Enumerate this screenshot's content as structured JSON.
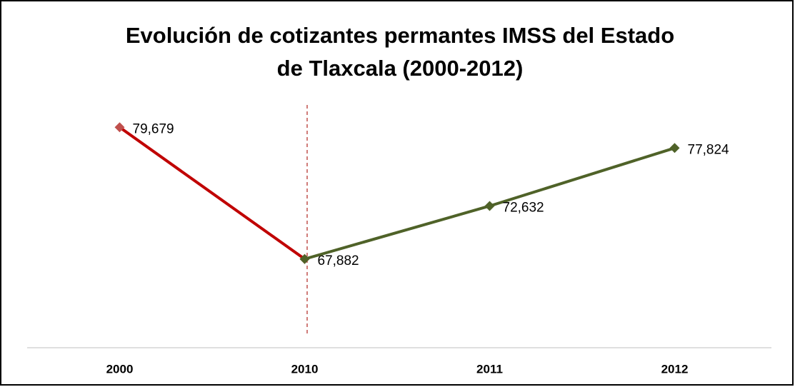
{
  "chart_data": {
    "type": "line",
    "title": [
      "Evolución de cotizantes permantes IMSS del Estado",
      "de Tlaxcala (2000-2012)"
    ],
    "categories": [
      "2000",
      "2010",
      "2011",
      "2012"
    ],
    "series": [
      {
        "color": "#c00000",
        "marker_color": "#c0504d",
        "values": [
          79679,
          67882,
          null,
          null
        ],
        "value_labels": [
          "79,679",
          "67,882",
          null,
          null
        ]
      },
      {
        "color": "#4f6228",
        "marker_color": "#4f6228",
        "values": [
          null,
          67882,
          72632,
          77824
        ],
        "value_labels": [
          null,
          null,
          "72,632",
          "77,824"
        ]
      }
    ],
    "ylim": [
      60000,
      82000
    ]
  }
}
